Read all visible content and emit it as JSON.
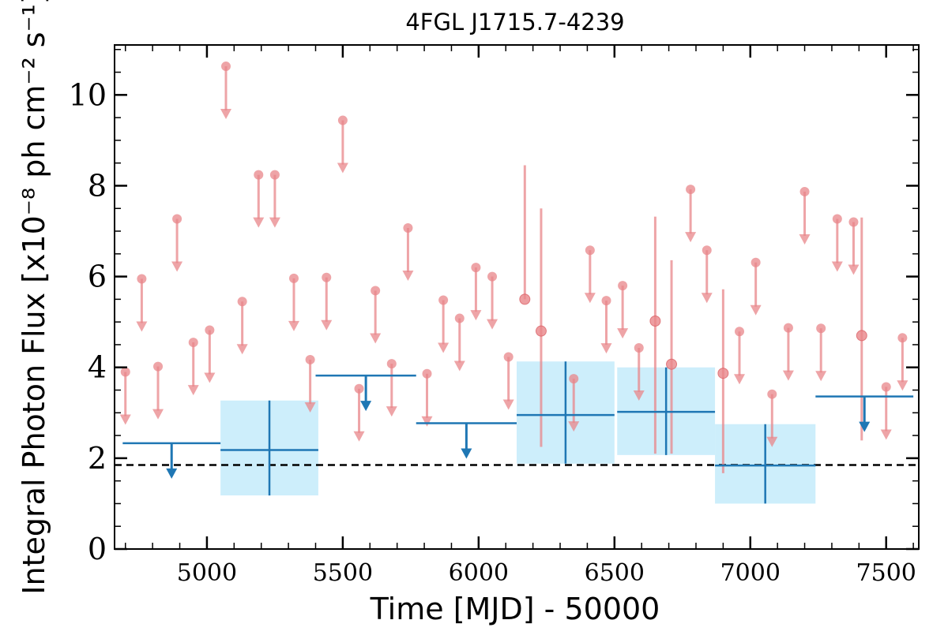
{
  "chart_data": {
    "type": "scatter",
    "title": "4FGL J1715.7-4239",
    "xlabel": "Time [MJD] - 50000",
    "ylabel": "Integral Photon Flux [x10⁻⁸ ph cm⁻² s⁻¹]",
    "xlim": [
      4660,
      7620
    ],
    "ylim": [
      0,
      11.1
    ],
    "x_ticks": [
      5000,
      5500,
      6000,
      6500,
      7000,
      7500
    ],
    "y_ticks": [
      0,
      2,
      4,
      6,
      8,
      10
    ],
    "reference_line": {
      "value": 1.85,
      "style": "dashed",
      "color": "#000000"
    },
    "colors": {
      "short_bins": "#e8868a",
      "long_bins": "#1f77b4",
      "long_bins_band": "#cdeefb",
      "reference": "#000000"
    },
    "series": [
      {
        "kind": "upper_limits",
        "x": [
          4700,
          4760,
          4820,
          4890,
          4950,
          5010,
          5070,
          5130,
          5190,
          5250,
          5320,
          5380,
          5440,
          5500,
          5560,
          5620,
          5680,
          5740,
          5810,
          5870,
          5930,
          5990,
          6050,
          6110,
          6350,
          6410,
          6470,
          6530,
          6590,
          6780,
          6840,
          6960,
          7020,
          7080,
          7140,
          7200,
          7260,
          7320,
          7380,
          7500,
          7560
        ],
        "y": [
          3.9,
          5.95,
          4.02,
          7.27,
          4.55,
          4.82,
          10.63,
          5.45,
          8.24,
          8.24,
          5.96,
          4.17,
          5.98,
          9.44,
          3.53,
          5.69,
          4.08,
          7.07,
          3.86,
          5.48,
          5.08,
          6.2,
          6.0,
          4.23,
          3.75,
          6.58,
          5.47,
          5.8,
          4.43,
          7.92,
          6.58,
          4.79,
          6.31,
          3.41,
          4.87,
          7.87,
          4.86,
          7.27,
          7.2,
          3.57,
          4.65
        ]
      },
      {
        "kind": "detections",
        "x": [
          6170,
          6230,
          6650,
          6710,
          6900,
          7410
        ],
        "y": [
          5.5,
          4.8,
          5.02,
          4.07,
          3.87,
          4.7
        ],
        "y_err_low": [
          5.5,
          2.25,
          2.1,
          2.1,
          1.67,
          2.39
        ],
        "y_err_high": [
          8.45,
          7.5,
          7.32,
          6.36,
          5.72,
          7.3
        ]
      },
      {
        "kind": "long_bin_upper_limits",
        "x_start": [
          4690,
          5400,
          5770,
          7240
        ],
        "x_end": [
          5050,
          5770,
          6140,
          7600
        ],
        "x_marker": [
          4870,
          5585,
          5955,
          7420
        ],
        "y": [
          2.33,
          3.82,
          2.77,
          3.36
        ]
      },
      {
        "kind": "long_bin_detections",
        "x_start": [
          5050,
          6140,
          6510,
          6870
        ],
        "x_end": [
          5410,
          6500,
          6870,
          7240
        ],
        "x_center": [
          5230,
          6320,
          6690,
          7055
        ],
        "y": [
          2.18,
          2.95,
          3.02,
          1.84
        ],
        "y_err_low": [
          1.18,
          1.88,
          2.07,
          1.0
        ],
        "y_err_high": [
          3.27,
          4.13,
          4.0,
          2.75
        ]
      }
    ]
  }
}
